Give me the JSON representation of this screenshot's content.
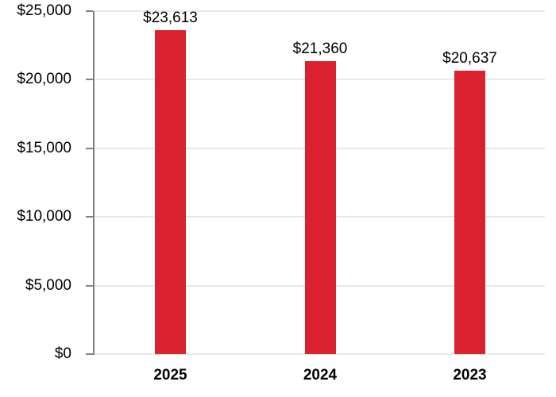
{
  "chart_data": {
    "type": "bar",
    "title": "",
    "xlabel": "",
    "ylabel": "",
    "categories": [
      "2025",
      "2024",
      "2023"
    ],
    "values": [
      23613,
      21360,
      20637
    ],
    "data_labels": [
      "$23,613",
      "$21,360",
      "$20,637"
    ],
    "series_unit": "USD",
    "ylim": [
      0,
      25000
    ],
    "y_ticks": [
      {
        "value": 25000,
        "label": "$25,000"
      },
      {
        "value": 20000,
        "label": "$20,000"
      },
      {
        "value": 15000,
        "label": "$15,000"
      },
      {
        "value": 10000,
        "label": "$10,000"
      },
      {
        "value": 5000,
        "label": "$5,000"
      },
      {
        "value": 0,
        "label": "$0"
      }
    ],
    "grid": "horizontal-on",
    "legend": "none",
    "colors": {
      "bar": "#D9222D",
      "axis": "#828282",
      "gridline": "#E8E8E8",
      "text": "#000000",
      "background": "#FFFFFF"
    }
  }
}
